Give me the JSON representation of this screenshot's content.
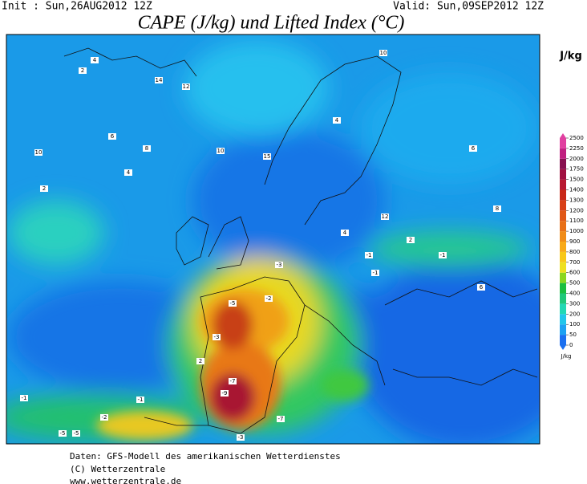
{
  "header": {
    "init": "Init : Sun,26AUG2012 12Z",
    "valid": "Valid: Sun,09SEP2012 12Z",
    "title": "CAPE (J/kg) und Lifted Index (°C)",
    "unit": "J/kg"
  },
  "colorbar": {
    "levels": [
      0,
      50,
      100,
      200,
      300,
      400,
      500,
      600,
      700,
      800,
      900,
      1000,
      1100,
      1200,
      1300,
      1400,
      1500,
      1750,
      2000,
      2250,
      2500
    ],
    "colors": [
      "#1c70f0",
      "#1ea2f2",
      "#22c6ea",
      "#22d8b4",
      "#20c87a",
      "#1cbe40",
      "#8cd620",
      "#eee020",
      "#f8c818",
      "#f8aa18",
      "#f08c18",
      "#e87018",
      "#e05818",
      "#d84018",
      "#c82818",
      "#b81830",
      "#a01040",
      "#881050",
      "#c02080",
      "#e040a0"
    ],
    "unit": "J/kg"
  },
  "contour_labels": [
    "10",
    "14",
    "12",
    "4",
    "2",
    "10",
    "15",
    "8",
    "6",
    "2",
    "4",
    "12",
    "10",
    "6",
    "4",
    "-1",
    "-3",
    "-5",
    "-7",
    "-9",
    "-2",
    "-3",
    "-1",
    "-5",
    "-7",
    "-1",
    "-2",
    "-5",
    "-3",
    "-1",
    "6",
    "8",
    "4",
    "2",
    "-1",
    "2"
  ],
  "footer": [
    "Daten: GFS-Modell des amerikanischen Wetterdienstes",
    "(C) Wetterzentrale",
    "www.wetterzentrale.de"
  ]
}
